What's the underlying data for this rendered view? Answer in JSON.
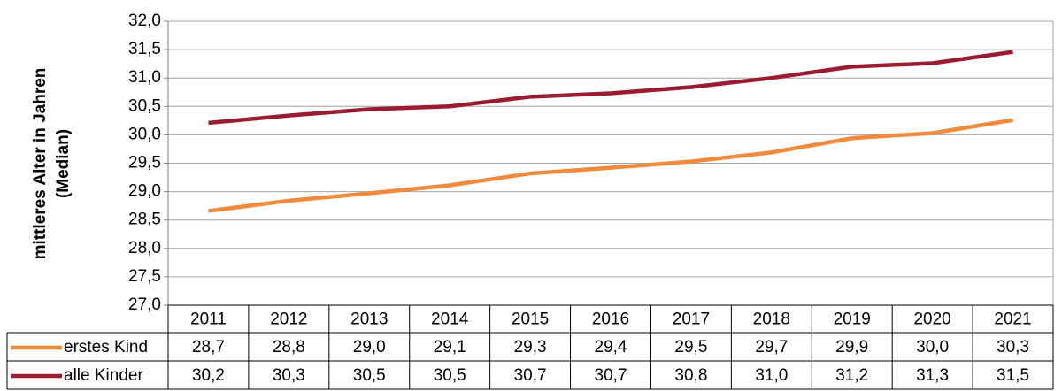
{
  "chart_data": {
    "type": "line",
    "ylabel": [
      "mittleres Alter in Jahren",
      "(Median)"
    ],
    "categories": [
      "2011",
      "2012",
      "2013",
      "2014",
      "2015",
      "2016",
      "2017",
      "2018",
      "2019",
      "2020",
      "2021"
    ],
    "series": [
      {
        "name": "erstes Kind",
        "color": "#f08a3c",
        "values": [
          28.66,
          28.84,
          28.97,
          29.11,
          29.32,
          29.42,
          29.53,
          29.69,
          29.94,
          30.03,
          30.26
        ],
        "value_labels": [
          "28,7",
          "28,8",
          "29,0",
          "29,1",
          "29,3",
          "29,4",
          "29,5",
          "29,7",
          "29,9",
          "30,0",
          "30,3"
        ]
      },
      {
        "name": "alle Kinder",
        "color": "#9b1b30",
        "values": [
          30.21,
          30.34,
          30.45,
          30.5,
          30.67,
          30.73,
          30.84,
          31.0,
          31.2,
          31.26,
          31.46
        ],
        "value_labels": [
          "30,2",
          "30,3",
          "30,5",
          "30,5",
          "30,7",
          "30,7",
          "30,8",
          "31,0",
          "31,2",
          "31,3",
          "31,5"
        ]
      }
    ],
    "ylim": [
      27,
      32
    ],
    "yticks": [
      {
        "value": 27,
        "label": "27,0"
      },
      {
        "value": 27.5,
        "label": "27,5"
      },
      {
        "value": 28,
        "label": "28,0"
      },
      {
        "value": 28.5,
        "label": "28,5"
      },
      {
        "value": 29,
        "label": "29,0"
      },
      {
        "value": 29.5,
        "label": "29,5"
      },
      {
        "value": 30,
        "label": "30,0"
      },
      {
        "value": 30.5,
        "label": "30,5"
      },
      {
        "value": 31,
        "label": "31,0"
      },
      {
        "value": 31.5,
        "label": "31,5"
      },
      {
        "value": 32,
        "label": "32,0"
      }
    ],
    "grid": true
  }
}
